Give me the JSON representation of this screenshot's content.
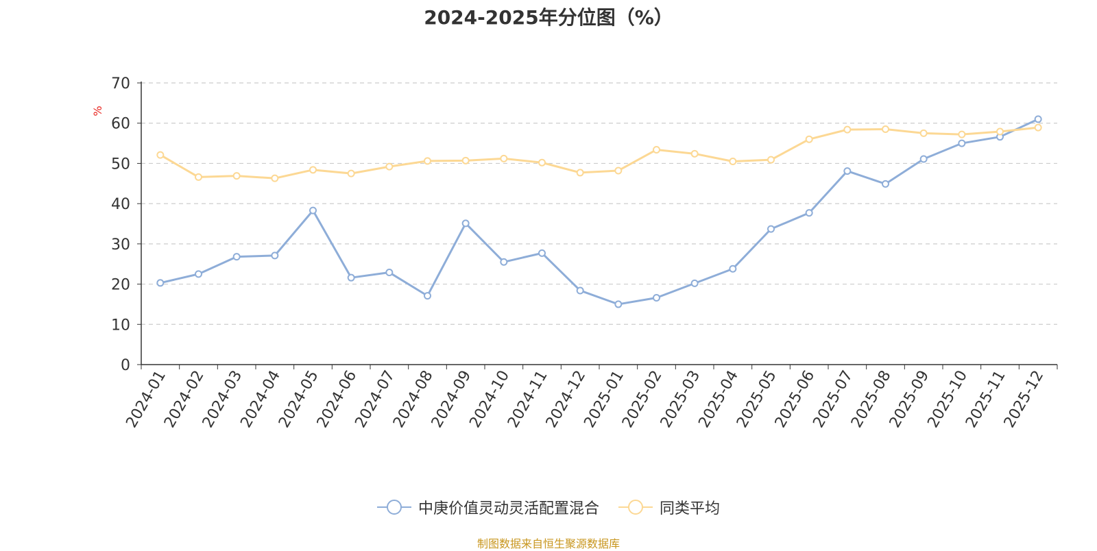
{
  "title": "2024-2025年分位图（%）",
  "source": "制图数据来自恒生聚源数据库",
  "chart_data": {
    "type": "line",
    "title": "2024-2025年分位图（%）",
    "ylabel": "%",
    "xlabel": "",
    "ylim": [
      0,
      70
    ],
    "yticks": [
      0,
      10,
      20,
      30,
      40,
      50,
      60,
      70
    ],
    "grid": "horizontal dashed",
    "legend_position": "bottom",
    "categories": [
      "2024-01",
      "2024-02",
      "2024-03",
      "2024-04",
      "2024-05",
      "2024-06",
      "2024-07",
      "2024-08",
      "2024-09",
      "2024-10",
      "2024-11",
      "2024-12",
      "2025-01",
      "2025-02",
      "2025-03",
      "2025-04",
      "2025-05",
      "2025-06",
      "2025-07",
      "2025-08",
      "2025-09",
      "2025-10",
      "2025-11",
      "2025-12"
    ],
    "series": [
      {
        "name": "中庚价值灵动灵活配置混合",
        "color": "#8eadd8",
        "values": [
          20.3,
          22.5,
          26.8,
          27.1,
          38.3,
          21.6,
          22.9,
          17.1,
          35.1,
          25.5,
          27.7,
          18.4,
          15.0,
          16.6,
          20.2,
          23.8,
          33.7,
          37.7,
          48.1,
          44.9,
          51.1,
          55.0,
          56.6,
          61.0
        ]
      },
      {
        "name": "同类平均",
        "color": "#fcd894",
        "values": [
          52.1,
          46.6,
          46.9,
          46.3,
          48.4,
          47.5,
          49.2,
          50.6,
          50.7,
          51.2,
          50.2,
          47.7,
          48.2,
          53.4,
          52.4,
          50.5,
          50.9,
          56.0,
          58.4,
          58.5,
          57.5,
          57.2,
          57.9,
          58.9
        ]
      }
    ]
  }
}
